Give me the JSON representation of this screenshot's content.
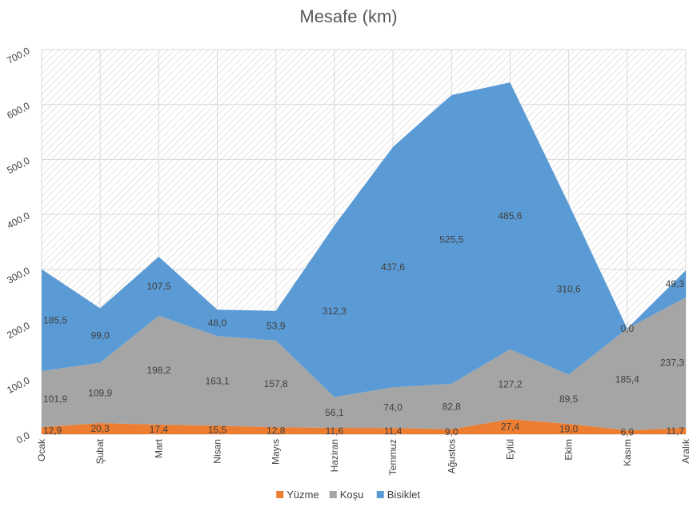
{
  "chart_data": {
    "type": "area",
    "stacked": true,
    "title": "Mesafe (km)",
    "xlabel": "",
    "ylabel": "",
    "ylim": [
      0,
      700
    ],
    "y_ticks": [
      "0,0",
      "100,0",
      "200,0",
      "300,0",
      "400,0",
      "500,0",
      "600,0",
      "700,0"
    ],
    "grid": true,
    "legend_position": "bottom",
    "categories": [
      "Ocak",
      "Şubat",
      "Mart",
      "Nisan",
      "Mayıs",
      "Haziran",
      "Temmuz",
      "Ağustos",
      "Eylül",
      "Ekim",
      "Kasım",
      "Aralık"
    ],
    "series": [
      {
        "name": "Yüzme",
        "color": "#ED7D31",
        "values": [
          12.9,
          20.3,
          17.4,
          15.5,
          12.8,
          11.6,
          11.4,
          9.0,
          27.4,
          19.0,
          6.9,
          11.7
        ],
        "labels": [
          "12,9",
          "20,3",
          "17,4",
          "15,5",
          "12,8",
          "11,6",
          "11,4",
          "9,0",
          "27,4",
          "19,0",
          "6,9",
          "11,7"
        ]
      },
      {
        "name": "Koşu",
        "color": "#A5A5A5",
        "values": [
          101.9,
          109.9,
          198.2,
          163.1,
          157.8,
          56.1,
          74.0,
          82.8,
          127.2,
          89.5,
          185.4,
          237.3
        ],
        "labels": [
          "101,9",
          "109,9",
          "198,2",
          "163,1",
          "157,8",
          "56,1",
          "74,0",
          "82,8",
          "127,2",
          "89,5",
          "185,4",
          "237,3"
        ]
      },
      {
        "name": "Bisiklet",
        "color": "#5B9BD5",
        "values": [
          185.5,
          99.0,
          107.5,
          48.0,
          53.9,
          312.3,
          437.6,
          525.5,
          485.6,
          310.6,
          0.0,
          49.3
        ],
        "labels": [
          "185,5",
          "99,0",
          "107,5",
          "48,0",
          "53,9",
          "312,3",
          "437,6",
          "525,5",
          "485,6",
          "310,6",
          "0,0",
          "49,3"
        ]
      }
    ]
  }
}
